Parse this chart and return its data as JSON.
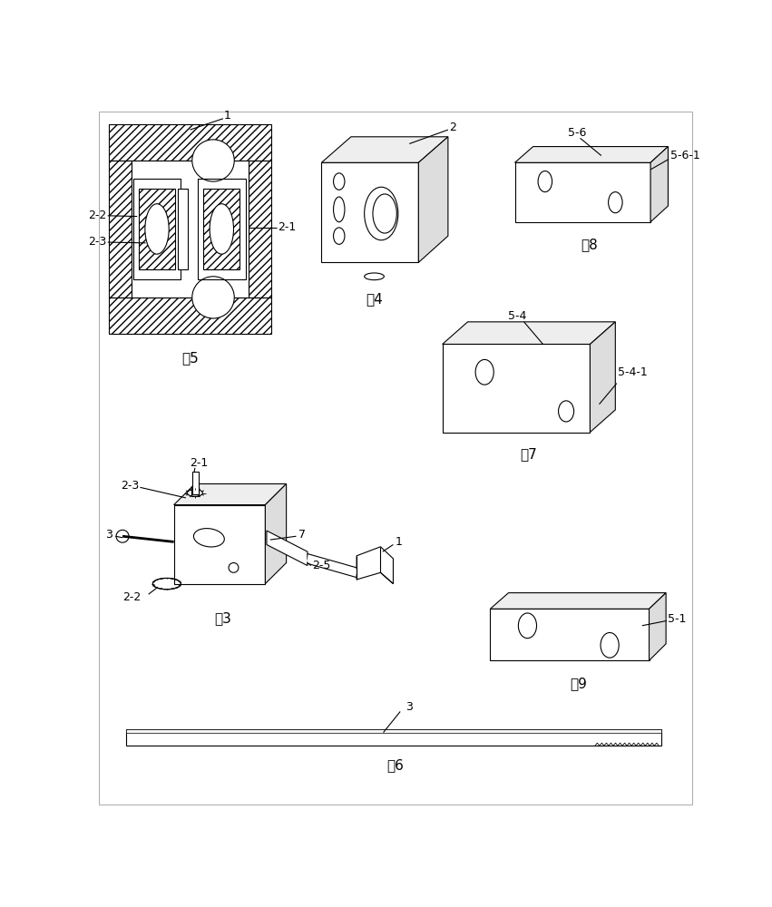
{
  "title": "",
  "background_color": "#ffffff",
  "line_color": "#000000",
  "fig_labels": {
    "fig3": "图3",
    "fig4": "图4",
    "fig5": "图5",
    "fig6": "图6",
    "fig7": "图7",
    "fig8": "图8",
    "fig9": "图9"
  },
  "font_size_label": 9,
  "font_size_fig": 11
}
